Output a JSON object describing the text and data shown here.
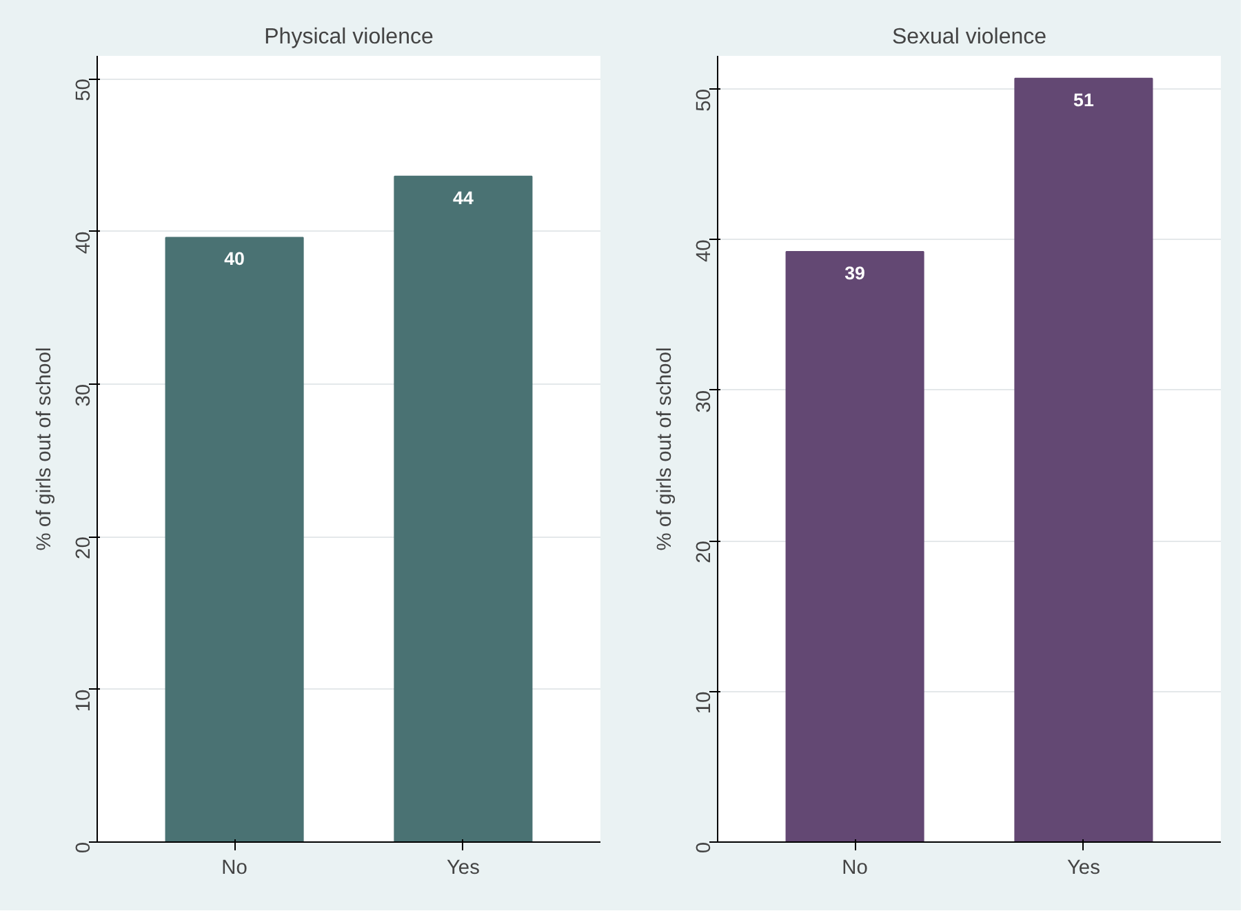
{
  "chart_data": [
    {
      "type": "bar",
      "title": "Physical violence",
      "ylabel": "% of girls out of school",
      "categories": [
        "No",
        "Yes"
      ],
      "values": [
        39.6,
        43.6
      ],
      "value_labels": [
        "40",
        "44"
      ],
      "color": "#4a7273",
      "ylim": [
        0,
        51.5
      ],
      "yticks": [
        0,
        10,
        20,
        30,
        40,
        50
      ],
      "grid": "y"
    },
    {
      "type": "bar",
      "title": "Sexual violence",
      "ylabel": "% of girls out of school",
      "categories": [
        "No",
        "Yes"
      ],
      "values": [
        39.2,
        50.7
      ],
      "value_labels": [
        "39",
        "51"
      ],
      "color": "#634873",
      "ylim": [
        0,
        52.2
      ],
      "yticks": [
        0,
        10,
        20,
        30,
        40,
        50
      ],
      "grid": "y"
    }
  ]
}
